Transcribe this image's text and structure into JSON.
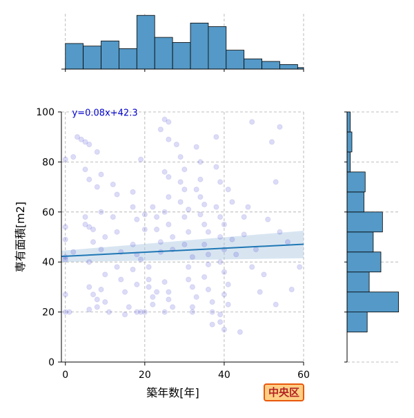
{
  "chart_data": {
    "type": "scatter",
    "xlabel": "築年数[年]",
    "ylabel": "専有面積[m2]",
    "xlim": [
      -1,
      60
    ],
    "ylim": [
      0,
      100
    ],
    "xticks": [
      0,
      20,
      40,
      60
    ],
    "yticks": [
      0,
      20,
      40,
      60,
      80,
      100
    ],
    "grid": true,
    "regression": {
      "label": "y=0.08x+42.3",
      "slope": 0.08,
      "intercept": 42.3,
      "ci_low_end": [
        40.0,
        41.5
      ],
      "ci_high_end": [
        44.5,
        52.5
      ]
    },
    "colors": {
      "points": "#3b3bd0",
      "line": "#1f77b4",
      "band": "#a9c6e0",
      "bars": "#5499c7",
      "annotation": "#0000cc"
    },
    "points": [
      [
        0,
        81
      ],
      [
        0,
        54
      ],
      [
        0,
        49
      ],
      [
        0,
        42
      ],
      [
        0,
        41
      ],
      [
        0,
        27
      ],
      [
        0,
        20
      ],
      [
        1,
        20
      ],
      [
        2,
        82
      ],
      [
        2,
        44
      ],
      [
        3,
        90
      ],
      [
        4,
        89
      ],
      [
        5,
        88
      ],
      [
        5,
        77
      ],
      [
        6,
        73
      ],
      [
        6,
        87
      ],
      [
        5,
        58
      ],
      [
        5,
        55
      ],
      [
        6,
        54
      ],
      [
        7,
        53
      ],
      [
        7,
        48
      ],
      [
        6,
        40
      ],
      [
        6,
        30
      ],
      [
        7,
        27
      ],
      [
        8,
        25
      ],
      [
        8,
        22
      ],
      [
        6,
        21
      ],
      [
        8,
        84
      ],
      [
        9,
        75
      ],
      [
        8,
        70
      ],
      [
        9,
        60
      ],
      [
        10,
        50
      ],
      [
        9,
        45
      ],
      [
        10,
        35
      ],
      [
        9,
        29
      ],
      [
        10,
        24
      ],
      [
        11,
        20
      ],
      [
        12,
        71
      ],
      [
        13,
        67
      ],
      [
        12,
        58
      ],
      [
        13,
        52
      ],
      [
        14,
        44
      ],
      [
        13,
        38
      ],
      [
        14,
        33
      ],
      [
        15,
        28
      ],
      [
        16,
        22
      ],
      [
        15,
        19
      ],
      [
        17,
        68
      ],
      [
        17,
        62
      ],
      [
        18,
        57
      ],
      [
        17,
        47
      ],
      [
        18,
        43
      ],
      [
        17,
        37
      ],
      [
        18,
        31
      ],
      [
        18,
        20
      ],
      [
        19,
        81
      ],
      [
        19,
        20
      ],
      [
        20,
        20
      ],
      [
        20,
        59
      ],
      [
        20,
        53
      ],
      [
        19,
        41
      ],
      [
        21,
        38
      ],
      [
        21,
        33
      ],
      [
        21,
        30
      ],
      [
        22,
        26
      ],
      [
        22,
        23
      ],
      [
        22,
        62
      ],
      [
        23,
        58
      ],
      [
        23,
        53
      ],
      [
        24,
        48
      ],
      [
        24,
        44
      ],
      [
        23,
        28
      ],
      [
        24,
        93
      ],
      [
        25,
        97
      ],
      [
        26,
        96
      ],
      [
        26,
        89
      ],
      [
        25,
        76
      ],
      [
        26,
        74
      ],
      [
        26,
        66
      ],
      [
        25,
        60
      ],
      [
        26,
        55
      ],
      [
        27,
        50
      ],
      [
        27,
        45
      ],
      [
        25,
        32
      ],
      [
        26,
        28
      ],
      [
        26,
        25
      ],
      [
        27,
        22
      ],
      [
        25,
        20
      ],
      [
        28,
        87
      ],
      [
        29,
        82
      ],
      [
        30,
        77
      ],
      [
        29,
        72
      ],
      [
        30,
        69
      ],
      [
        29,
        64
      ],
      [
        31,
        61
      ],
      [
        30,
        58
      ],
      [
        31,
        52
      ],
      [
        30,
        47
      ],
      [
        32,
        42
      ],
      [
        31,
        38
      ],
      [
        31,
        33
      ],
      [
        32,
        30
      ],
      [
        33,
        26
      ],
      [
        32,
        22
      ],
      [
        32,
        20
      ],
      [
        33,
        86
      ],
      [
        34,
        80
      ],
      [
        34,
        73
      ],
      [
        33,
        69
      ],
      [
        34,
        66
      ],
      [
        35,
        63
      ],
      [
        34,
        59
      ],
      [
        35,
        55
      ],
      [
        36,
        52
      ],
      [
        35,
        47
      ],
      [
        36,
        43
      ],
      [
        36,
        39
      ],
      [
        35,
        34
      ],
      [
        36,
        29
      ],
      [
        37,
        24
      ],
      [
        37,
        20
      ],
      [
        37,
        15
      ],
      [
        38,
        90
      ],
      [
        38,
        78
      ],
      [
        39,
        72
      ],
      [
        38,
        62
      ],
      [
        39,
        58
      ],
      [
        40,
        55
      ],
      [
        39,
        50
      ],
      [
        40,
        45
      ],
      [
        39,
        40
      ],
      [
        40,
        36
      ],
      [
        41,
        31
      ],
      [
        40,
        27
      ],
      [
        41,
        23
      ],
      [
        39,
        19
      ],
      [
        39,
        16
      ],
      [
        40,
        13
      ],
      [
        41,
        69
      ],
      [
        42,
        64
      ],
      [
        42,
        49
      ],
      [
        43,
        43
      ],
      [
        44,
        12
      ],
      [
        45,
        58
      ],
      [
        45,
        51
      ],
      [
        46,
        62
      ],
      [
        47,
        38
      ],
      [
        47,
        96
      ],
      [
        48,
        45
      ],
      [
        49,
        28
      ],
      [
        50,
        35
      ],
      [
        51,
        57
      ],
      [
        52,
        88
      ],
      [
        53,
        23
      ],
      [
        53,
        72
      ],
      [
        54,
        94
      ],
      [
        54,
        52
      ],
      [
        56,
        48
      ],
      [
        57,
        29
      ],
      [
        59,
        38
      ]
    ],
    "hist_x": {
      "bin_width": 4.5,
      "start": 0,
      "counts": [
        5,
        4.5,
        5.5,
        4,
        10.5,
        6.2,
        5.2,
        9,
        8.3,
        3.7,
        2.0,
        1.5,
        0.9,
        0.3
      ]
    },
    "hist_y": {
      "bin_width": 8,
      "start": 12,
      "counts": [
        5,
        12.8,
        5.5,
        8.4,
        6.5,
        8.8,
        4.2,
        4.5,
        0.8,
        1.2,
        0.8
      ]
    }
  },
  "badge": {
    "label": "中央区"
  }
}
